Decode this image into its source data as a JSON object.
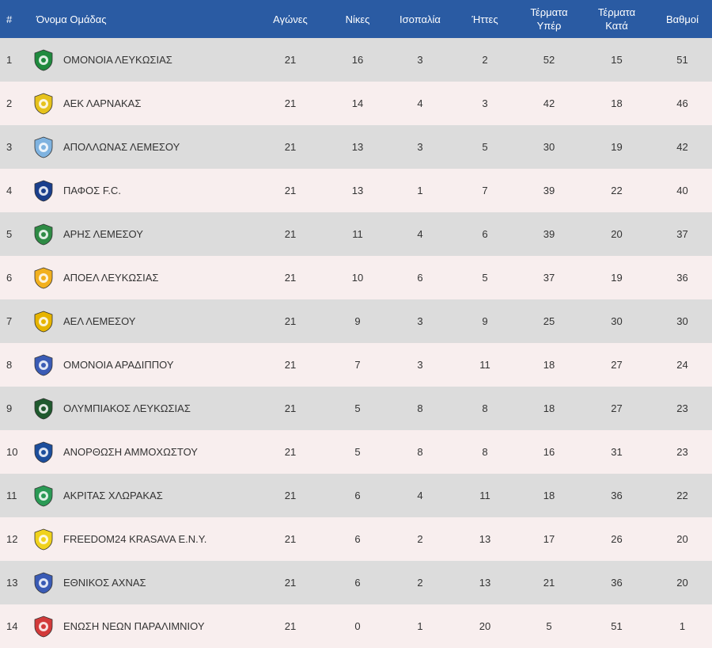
{
  "headers": {
    "rank": "#",
    "team": "Όνομα Ομάδας",
    "played": "Αγώνες",
    "wins": "Νίκες",
    "draws": "Ισοπαλία",
    "losses": "Ήττες",
    "gf_line1": "Τέρματα",
    "gf_line2": "Υπέρ",
    "ga_line1": "Τέρματα",
    "ga_line2": "Κατά",
    "points": "Βαθμοί"
  },
  "rows": [
    {
      "rank": "1",
      "team": "ΟΜΟΝΟΙΑ ΛΕΥΚΩΣΙΑΣ",
      "logo": "omonoia-crest-icon",
      "logo_color": "#1f8a3e",
      "played": "21",
      "wins": "16",
      "draws": "3",
      "losses": "2",
      "gf": "52",
      "ga": "15",
      "points": "51"
    },
    {
      "rank": "2",
      "team": "ΑΕΚ ΛΑΡΝΑΚΑΣ",
      "logo": "aek-crest-icon",
      "logo_color": "#e6c21c",
      "played": "21",
      "wins": "14",
      "draws": "4",
      "losses": "3",
      "gf": "42",
      "ga": "18",
      "points": "46"
    },
    {
      "rank": "3",
      "team": "ΑΠΟΛΛΩΝΑΣ ΛΕΜΕΣΟΥ",
      "logo": "apollon-crest-icon",
      "logo_color": "#7fb3e0",
      "played": "21",
      "wins": "13",
      "draws": "3",
      "losses": "5",
      "gf": "30",
      "ga": "19",
      "points": "42"
    },
    {
      "rank": "4",
      "team": "ΠΑΦΟΣ F.C.",
      "logo": "pafos-crest-icon",
      "logo_color": "#1a3f8c",
      "played": "21",
      "wins": "13",
      "draws": "1",
      "losses": "7",
      "gf": "39",
      "ga": "22",
      "points": "40"
    },
    {
      "rank": "5",
      "team": "ΑΡΗΣ ΛΕΜΕΣΟΥ",
      "logo": "aris-crest-icon",
      "logo_color": "#2e8b45",
      "played": "21",
      "wins": "11",
      "draws": "4",
      "losses": "6",
      "gf": "39",
      "ga": "20",
      "points": "37"
    },
    {
      "rank": "6",
      "team": "ΑΠΟΕΛ ΛΕΥΚΩΣΙΑΣ",
      "logo": "apoel-crest-icon",
      "logo_color": "#f2b01e",
      "played": "21",
      "wins": "10",
      "draws": "6",
      "losses": "5",
      "gf": "37",
      "ga": "19",
      "points": "36"
    },
    {
      "rank": "7",
      "team": "ΑΕΛ ΛΕΜΕΣΟΥ",
      "logo": "ael-crest-icon",
      "logo_color": "#e6b400",
      "played": "21",
      "wins": "9",
      "draws": "3",
      "losses": "9",
      "gf": "25",
      "ga": "30",
      "points": "30"
    },
    {
      "rank": "8",
      "team": "ΟΜΟΝΟΙΑ ΑΡΑΔΙΠΠΟΥ",
      "logo": "omonoia-aradippou-crest-icon",
      "logo_color": "#3a5bb5",
      "played": "21",
      "wins": "7",
      "draws": "3",
      "losses": "11",
      "gf": "18",
      "ga": "27",
      "points": "24"
    },
    {
      "rank": "9",
      "team": "ΟΛΥΜΠΙΑΚΟΣ ΛΕΥΚΩΣΙΑΣ",
      "logo": "olympiakos-crest-icon",
      "logo_color": "#1f5a2e",
      "played": "21",
      "wins": "5",
      "draws": "8",
      "losses": "8",
      "gf": "18",
      "ga": "27",
      "points": "23"
    },
    {
      "rank": "10",
      "team": "ΑΝΟΡΘΩΣΗ ΑΜΜΟΧΩΣΤΟΥ",
      "logo": "anorthosis-crest-icon",
      "logo_color": "#1c4e9c",
      "played": "21",
      "wins": "5",
      "draws": "8",
      "losses": "8",
      "gf": "16",
      "ga": "31",
      "points": "23"
    },
    {
      "rank": "11",
      "team": "ΑΚΡΙΤΑΣ ΧΛΩΡΑΚΑΣ",
      "logo": "akritas-crest-icon",
      "logo_color": "#2a9a55",
      "played": "21",
      "wins": "6",
      "draws": "4",
      "losses": "11",
      "gf": "18",
      "ga": "36",
      "points": "22"
    },
    {
      "rank": "12",
      "team": "FREEDOM24 KRASAVA E.N.Y.",
      "logo": "krasava-crest-icon",
      "logo_color": "#f0d21c",
      "played": "21",
      "wins": "6",
      "draws": "2",
      "losses": "13",
      "gf": "17",
      "ga": "26",
      "points": "20"
    },
    {
      "rank": "13",
      "team": "ΕΘΝΙΚΟΣ ΑΧΝΑΣ",
      "logo": "ethnikos-crest-icon",
      "logo_color": "#3a5bb5",
      "played": "21",
      "wins": "6",
      "draws": "2",
      "losses": "13",
      "gf": "21",
      "ga": "36",
      "points": "20"
    },
    {
      "rank": "14",
      "team": "ΕΝΩΣΗ ΝΕΩΝ ΠΑΡΑΛΙΜΝΙΟΥ",
      "logo": "enp-crest-icon",
      "logo_color": "#d23a3a",
      "played": "21",
      "wins": "0",
      "draws": "1",
      "losses": "20",
      "gf": "5",
      "ga": "51",
      "points": "1"
    }
  ]
}
